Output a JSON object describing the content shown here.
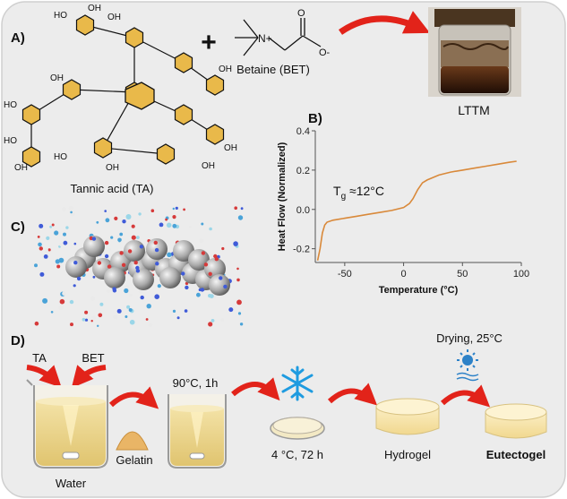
{
  "panels": {
    "a": {
      "label": "A)",
      "tannic_acid": "Tannic acid (TA)",
      "betaine": "Betaine (BET)",
      "plus": "+",
      "product": "LTTM",
      "atoms": {
        "oh": "OH",
        "ho": "HO",
        "o": "O",
        "o_minus": "O-",
        "n_plus": "N+"
      }
    },
    "b": {
      "label": "B)"
    },
    "c": {
      "label": "C)"
    },
    "d": {
      "label": "D)",
      "ta": "TA",
      "bet": "BET",
      "water": "Water",
      "gelatin": "Gelatin",
      "heat": "90°C, 1h",
      "cool": "4 °C, 72 h",
      "hydrogel": "Hydrogel",
      "drying": "Drying, 25°C",
      "final": "Eutectogel"
    }
  },
  "chart_data": {
    "type": "line",
    "title": "",
    "xlabel": "Temperature (°C)",
    "ylabel": "Heat Flow (Normalized)",
    "xlim": [
      -75,
      100
    ],
    "ylim": [
      -0.27,
      0.4
    ],
    "xticks": [
      -50,
      0,
      50,
      100
    ],
    "yticks": [
      -0.2,
      0.0,
      0.2,
      0.4
    ],
    "annotation": {
      "text": "Tg ≈12°C",
      "main": "T",
      "sub": "g",
      "rest": " ≈12°C"
    },
    "series": [
      {
        "name": "",
        "color": "#d9893a",
        "x": [
          -73,
          -71,
          -69,
          -67,
          -65,
          -60,
          -50,
          -40,
          -30,
          -20,
          -10,
          0,
          5,
          8,
          12,
          16,
          20,
          30,
          40,
          50,
          60,
          70,
          80,
          90,
          96
        ],
        "y": [
          -0.26,
          -0.2,
          -0.12,
          -0.08,
          -0.065,
          -0.055,
          -0.045,
          -0.035,
          -0.025,
          -0.015,
          -0.005,
          0.01,
          0.03,
          0.055,
          0.1,
          0.135,
          0.15,
          0.175,
          0.19,
          0.2,
          0.21,
          0.22,
          0.23,
          0.24,
          0.245
        ]
      }
    ]
  }
}
